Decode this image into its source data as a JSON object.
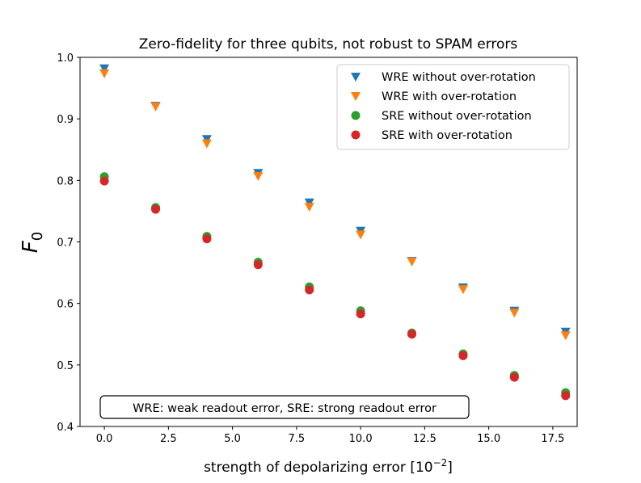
{
  "chart_data": {
    "type": "scatter",
    "title": "Zero-fidelity for three qubits, not robust to SPAM errors",
    "xlabel": "strength of depolarizing error [10",
    "xlabel_sup": "−2",
    "xlabel_end": "]",
    "ylabel": "F",
    "ylabel_sub": "0",
    "xlim": [
      -0.95,
      18.45
    ],
    "ylim": [
      0.4,
      1.0
    ],
    "xticks": [
      0,
      2.5,
      5,
      7.5,
      10,
      12.5,
      15,
      17.5
    ],
    "xtick_labels": [
      "0.0",
      "2.5",
      "5.0",
      "7.5",
      "10.0",
      "12.5",
      "15.0",
      "17.5"
    ],
    "yticks": [
      0.4,
      0.5,
      0.6,
      0.7,
      0.8,
      0.9,
      1.0
    ],
    "ytick_labels": [
      "0.4",
      "0.5",
      "0.6",
      "0.7",
      "0.8",
      "0.9",
      "1.0"
    ],
    "grid": false,
    "legend_position": "top-right",
    "annotation": "WRE: weak readout error, SRE: strong readout error",
    "x": [
      0,
      2,
      4,
      6,
      8,
      10,
      12,
      14,
      16,
      18
    ],
    "series": [
      {
        "name": "WRE without over-rotation",
        "marker": "triangle-down",
        "color": "#1f77b4",
        "values": [
          0.982,
          0.921,
          0.867,
          0.812,
          0.764,
          0.718,
          0.669,
          0.626,
          0.588,
          0.554
        ]
      },
      {
        "name": "WRE with over-rotation",
        "marker": "triangle-down",
        "color": "#ff7f0e",
        "values": [
          0.974,
          0.92,
          0.86,
          0.807,
          0.757,
          0.712,
          0.668,
          0.623,
          0.585,
          0.548
        ]
      },
      {
        "name": "SRE without over-rotation",
        "marker": "circle",
        "color": "#2ca02c",
        "values": [
          0.806,
          0.756,
          0.709,
          0.667,
          0.627,
          0.588,
          0.552,
          0.518,
          0.483,
          0.455
        ]
      },
      {
        "name": "SRE with over-rotation",
        "marker": "circle",
        "color": "#d62728",
        "values": [
          0.799,
          0.753,
          0.705,
          0.663,
          0.622,
          0.583,
          0.55,
          0.515,
          0.48,
          0.45
        ]
      }
    ]
  }
}
